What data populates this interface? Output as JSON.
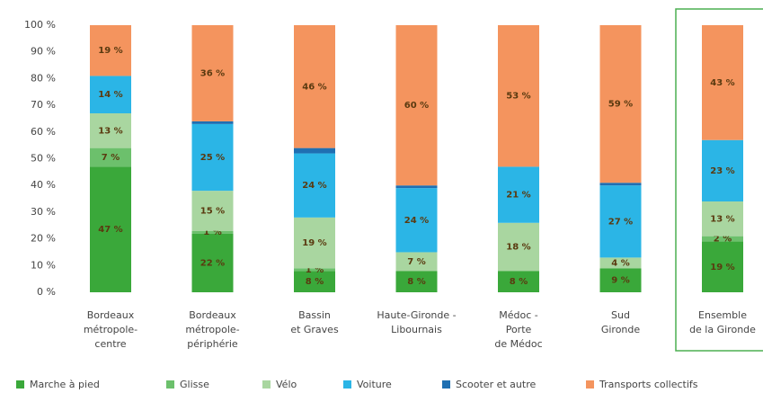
{
  "chart_data": {
    "type": "stacked_bar",
    "categories": [
      [
        "Bordeaux",
        "métropole-",
        "centre"
      ],
      [
        "Bordeaux",
        "métropole-",
        "périphérie"
      ],
      [
        "Bassin",
        "et Graves"
      ],
      [
        "Haute-Gironde -",
        "Libournais"
      ],
      [
        "Médoc -",
        "Porte",
        "de Médoc"
      ],
      [
        "Sud",
        "Gironde"
      ],
      [
        "Ensemble",
        "de la Gironde"
      ]
    ],
    "series": [
      {
        "name": "Marche à pied",
        "color": "#3aa83a",
        "values": [
          47,
          22,
          8,
          8,
          8,
          9,
          19
        ],
        "value_labels": [
          "47 %",
          "22 %",
          "8 %",
          "8 %",
          "8 %",
          "9 %",
          "19 %"
        ]
      },
      {
        "name": "Glisse",
        "color": "#6cc06c",
        "values": [
          7,
          1,
          1,
          0,
          0,
          0,
          2
        ],
        "value_labels": [
          "7 %",
          "1 %",
          "1 %",
          "0 %",
          "0 %",
          "0 %",
          "2 %"
        ]
      },
      {
        "name": "Vélo",
        "color": "#a9d6a0",
        "values": [
          13,
          15,
          19,
          7,
          18,
          4,
          13
        ],
        "value_labels": [
          "13 %",
          "15 %",
          "19 %",
          "7 %",
          "18 %",
          "4 %",
          "13 %"
        ]
      },
      {
        "name": "Voiture",
        "color": "#2bb5e6",
        "values": [
          14,
          25,
          24,
          24,
          21,
          27,
          23
        ],
        "value_labels": [
          "14 %",
          "25 %",
          "24 %",
          "24 %",
          "21 %",
          "27 %",
          "23 %"
        ]
      },
      {
        "name": "Scooter et autre",
        "color": "#1f6fb2",
        "values": [
          0,
          1,
          2,
          1,
          0,
          1,
          0
        ],
        "value_labels": [
          null,
          null,
          null,
          null,
          null,
          null,
          null
        ]
      },
      {
        "name": "Transports collectifs",
        "color": "#f4945e",
        "values": [
          19,
          36,
          46,
          60,
          53,
          59,
          43
        ],
        "value_labels": [
          "19 %",
          "36 %",
          "46 %",
          "60 %",
          "53 %",
          "59 %",
          "43 %"
        ]
      }
    ],
    "ylim": [
      0,
      100
    ],
    "yticks": [
      {
        "value": 0,
        "label": "0 %"
      },
      {
        "value": 10,
        "label": "10 %"
      },
      {
        "value": 20,
        "label": "20 %"
      },
      {
        "value": 30,
        "label": "30 %"
      },
      {
        "value": 40,
        "label": "40 %"
      },
      {
        "value": 50,
        "label": "50 %"
      },
      {
        "value": 60,
        "label": "60 %"
      },
      {
        "value": 70,
        "label": "70 %"
      },
      {
        "value": 80,
        "label": "80 %"
      },
      {
        "value": 90,
        "label": "90 %"
      },
      {
        "value": 100,
        "label": "100 %"
      }
    ],
    "highlight_category": 6,
    "highlight_color": "#4caf50"
  }
}
